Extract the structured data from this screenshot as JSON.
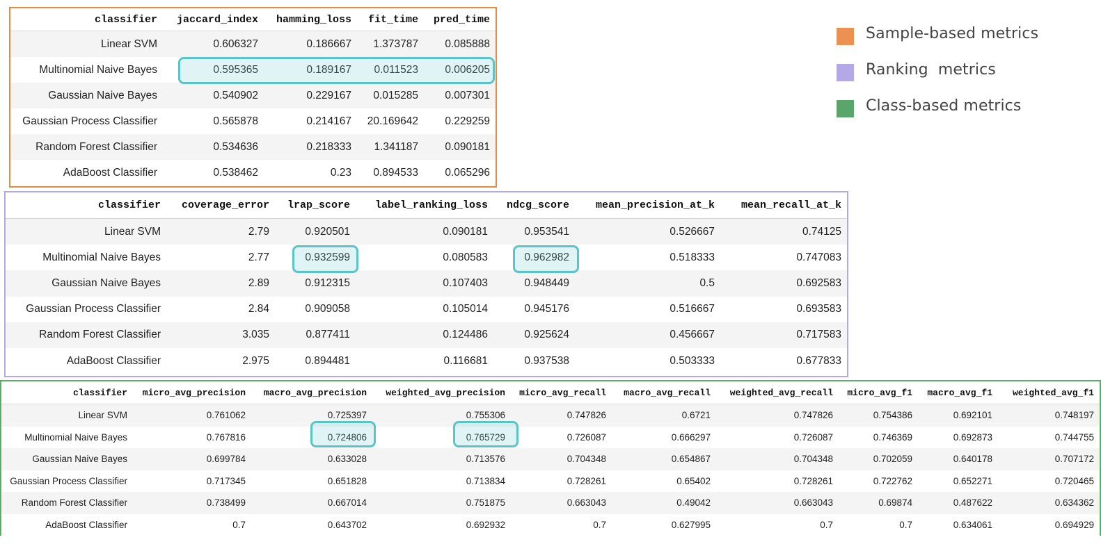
{
  "legend": [
    {
      "label": "Sample-based metrics",
      "color": "#ec9152"
    },
    {
      "label": "Ranking  metrics",
      "color": "#b4a9e6"
    },
    {
      "label": "Class-based metrics",
      "color": "#5aa66a"
    }
  ],
  "highlight_color": "#5bc4c6",
  "sample_table": {
    "border_color": "#e58b44",
    "columns": [
      "classifier",
      "jaccard_index",
      "hamming_loss",
      "fit_time",
      "pred_time"
    ],
    "rows": [
      [
        "Linear SVM",
        "0.606327",
        "0.186667",
        "1.373787",
        "0.085888"
      ],
      [
        "Multinomial Naive Bayes",
        "0.595365",
        "0.189167",
        "0.011523",
        "0.006205"
      ],
      [
        "Gaussian Naive Bayes",
        "0.540902",
        "0.229167",
        "0.015285",
        "0.007301"
      ],
      [
        "Gaussian Process Classifier",
        "0.565878",
        "0.214167",
        "20.169642",
        "0.229259"
      ],
      [
        "Random Forest Classifier",
        "0.534636",
        "0.218333",
        "1.341187",
        "0.090181"
      ],
      [
        "AdaBoost Classifier",
        "0.538462",
        "0.23",
        "0.894533",
        "0.065296"
      ]
    ]
  },
  "ranking_table": {
    "border_color": "#b3a7e4",
    "columns": [
      "classifier",
      "coverage_error",
      "lrap_score",
      "label_ranking_loss",
      "ndcg_score",
      "mean_precision_at_k",
      "mean_recall_at_k"
    ],
    "rows": [
      [
        "Linear SVM",
        "2.79",
        "0.920501",
        "0.090181",
        "0.953541",
        "0.526667",
        "0.74125"
      ],
      [
        "Multinomial Naive Bayes",
        "2.77",
        "0.932599",
        "0.080583",
        "0.962982",
        "0.518333",
        "0.747083"
      ],
      [
        "Gaussian Naive Bayes",
        "2.89",
        "0.912315",
        "0.107403",
        "0.948449",
        "0.5",
        "0.692583"
      ],
      [
        "Gaussian Process Classifier",
        "2.84",
        "0.909058",
        "0.105014",
        "0.945176",
        "0.516667",
        "0.693583"
      ],
      [
        "Random Forest Classifier",
        "3.035",
        "0.877411",
        "0.124486",
        "0.925624",
        "0.456667",
        "0.717583"
      ],
      [
        "AdaBoost Classifier",
        "2.975",
        "0.894481",
        "0.116681",
        "0.937538",
        "0.503333",
        "0.677833"
      ]
    ]
  },
  "class_table": {
    "border_color": "#5faa6b",
    "columns": [
      "classifier",
      "micro_avg_precision",
      "macro_avg_precision",
      "weighted_avg_precision",
      "micro_avg_recall",
      "macro_avg_recall",
      "weighted_avg_recall",
      "micro_avg_f1",
      "macro_avg_f1",
      "weighted_avg_f1"
    ],
    "rows": [
      [
        "Linear SVM",
        "0.761062",
        "0.725397",
        "0.755306",
        "0.747826",
        "0.6721",
        "0.747826",
        "0.754386",
        "0.692101",
        "0.748197"
      ],
      [
        "Multinomial Naive Bayes",
        "0.767816",
        "0.724806",
        "0.765729",
        "0.726087",
        "0.666297",
        "0.726087",
        "0.746369",
        "0.692873",
        "0.744755"
      ],
      [
        "Gaussian Naive Bayes",
        "0.699784",
        "0.633028",
        "0.713576",
        "0.704348",
        "0.654867",
        "0.704348",
        "0.702059",
        "0.640178",
        "0.707172"
      ],
      [
        "Gaussian Process Classifier",
        "0.717345",
        "0.651828",
        "0.713834",
        "0.728261",
        "0.65402",
        "0.728261",
        "0.722762",
        "0.652271",
        "0.720465"
      ],
      [
        "Random Forest Classifier",
        "0.738499",
        "0.667014",
        "0.751875",
        "0.663043",
        "0.49042",
        "0.663043",
        "0.69874",
        "0.487622",
        "0.634362"
      ],
      [
        "AdaBoost Classifier",
        "0.7",
        "0.643702",
        "0.692932",
        "0.7",
        "0.627995",
        "0.7",
        "0.7",
        "0.634061",
        "0.694929"
      ]
    ]
  }
}
